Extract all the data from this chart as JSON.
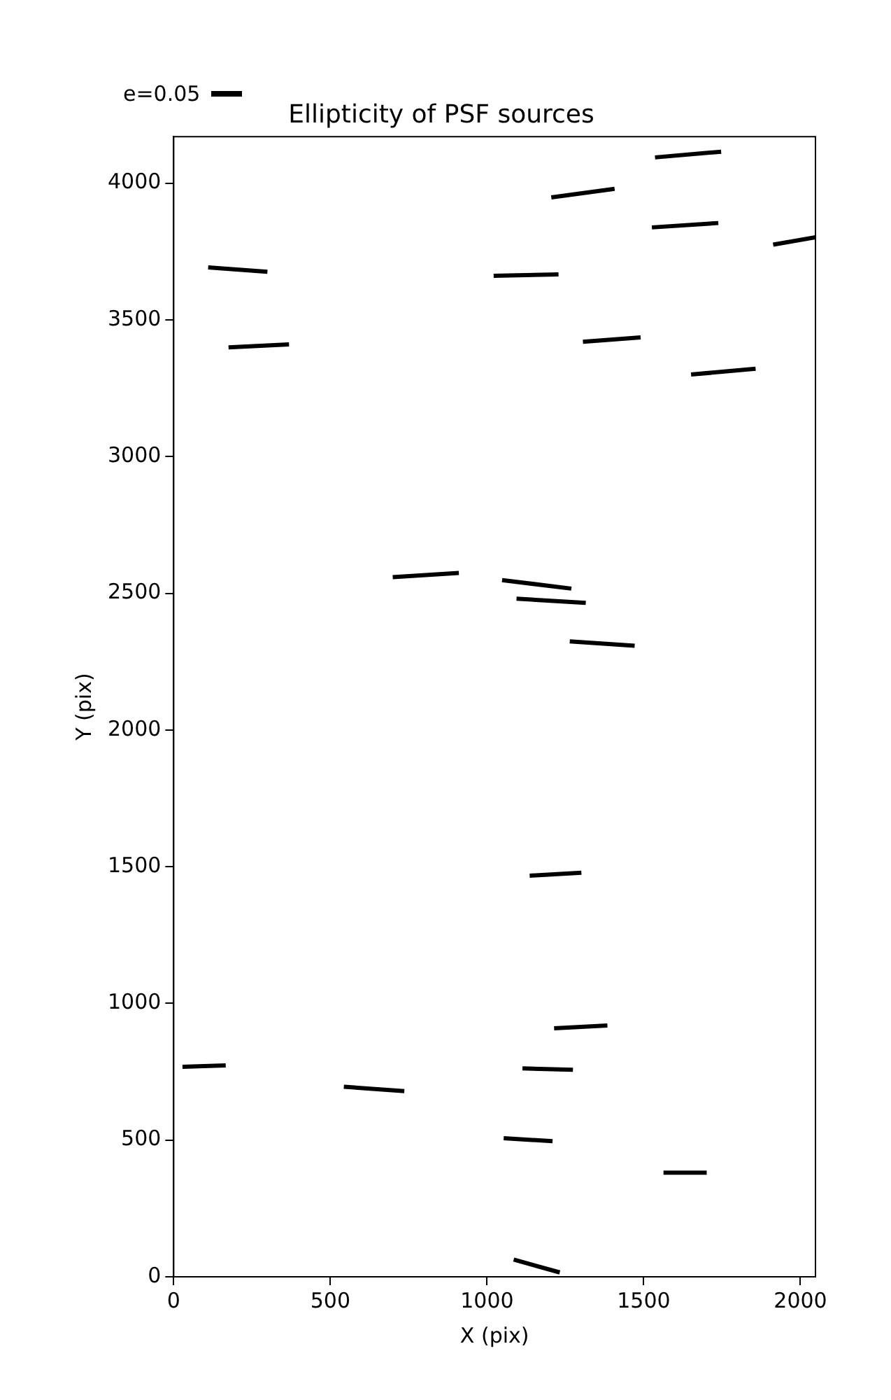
{
  "chart_data": {
    "type": "line",
    "title": "Ellipticity of PSF sources",
    "xlabel": "X (pix)",
    "ylabel": "Y (pix)",
    "annotations": [
      "e=0.05"
    ],
    "xlim": [
      0,
      2048
    ],
    "ylim": [
      0,
      4170
    ],
    "xticks": [
      0,
      500,
      1000,
      1500,
      2000
    ],
    "yticks": [
      0,
      500,
      1000,
      1500,
      2000,
      2500,
      3000,
      3500,
      4000
    ],
    "marker": "none",
    "line_style": "solid",
    "series": [
      {
        "color": "#000000",
        "x": [
          1536,
          1747
        ],
        "values": [
          4094,
          4115
        ]
      },
      {
        "color": "#000000",
        "x": [
          1205,
          1407
        ],
        "values": [
          3948,
          3979
        ]
      },
      {
        "color": "#000000",
        "x": [
          1526,
          1738
        ],
        "values": [
          3838,
          3854
        ]
      },
      {
        "color": "#000000",
        "x": [
          1913,
          2048
        ],
        "values": [
          3775,
          3802
        ]
      },
      {
        "color": "#000000",
        "x": [
          110,
          299
        ],
        "values": [
          3692,
          3676
        ]
      },
      {
        "color": "#000000",
        "x": [
          1021,
          1228
        ],
        "values": [
          3661,
          3666
        ]
      },
      {
        "color": "#000000",
        "x": [
          175,
          368
        ],
        "values": [
          3399,
          3410
        ]
      },
      {
        "color": "#000000",
        "x": [
          1306,
          1490
        ],
        "values": [
          3420,
          3436
        ]
      },
      {
        "color": "#000000",
        "x": [
          1651,
          1857
        ],
        "values": [
          3300,
          3321
        ]
      },
      {
        "color": "#000000",
        "x": [
          699,
          910
        ],
        "values": [
          2559,
          2574
        ]
      },
      {
        "color": "#000000",
        "x": [
          1048,
          1269
        ],
        "values": [
          2548,
          2517
        ]
      },
      {
        "color": "#000000",
        "x": [
          1094,
          1315
        ],
        "values": [
          2480,
          2465
        ]
      },
      {
        "color": "#000000",
        "x": [
          1264,
          1471
        ],
        "values": [
          2324,
          2308
        ]
      },
      {
        "color": "#000000",
        "x": [
          1136,
          1301
        ],
        "values": [
          1467,
          1478
        ]
      },
      {
        "color": "#000000",
        "x": [
          1214,
          1384
        ],
        "values": [
          909,
          919
        ]
      },
      {
        "color": "#000000",
        "x": [
          28,
          166
        ],
        "values": [
          768,
          773
        ]
      },
      {
        "color": "#000000",
        "x": [
          543,
          736
        ],
        "values": [
          695,
          679
        ]
      },
      {
        "color": "#000000",
        "x": [
          1113,
          1274
        ],
        "values": [
          762,
          757
        ]
      },
      {
        "color": "#000000",
        "x": [
          1053,
          1209
        ],
        "values": [
          507,
          496
        ]
      },
      {
        "color": "#000000",
        "x": [
          1563,
          1701
        ],
        "values": [
          381,
          381
        ]
      },
      {
        "color": "#000000",
        "x": [
          1085,
          1232
        ],
        "values": [
          63,
          16
        ]
      }
    ]
  }
}
